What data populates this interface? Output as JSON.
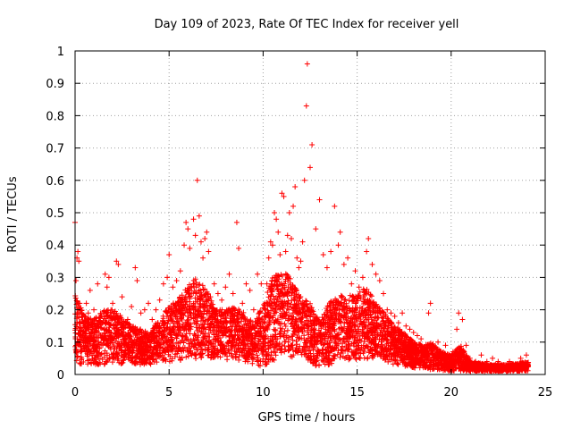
{
  "chart_data": {
    "type": "scatter",
    "title": "Day 109 of 2023, Rate Of TEC Index for receiver yell",
    "xlabel": "GPS time / hours",
    "ylabel": "ROTI / TECUs",
    "xlim": [
      0,
      25
    ],
    "ylim": [
      0,
      1
    ],
    "x_ticks": [
      0,
      5,
      10,
      15,
      20,
      25
    ],
    "x_tick_labels": [
      "0",
      "5",
      "10",
      "15",
      "20",
      "25"
    ],
    "y_ticks": [
      0,
      0.1,
      0.2,
      0.3,
      0.4,
      0.5,
      0.6,
      0.7,
      0.8,
      0.9,
      1
    ],
    "y_tick_labels": [
      "0",
      "0.1",
      "0.2",
      "0.3",
      "0.4",
      "0.5",
      "0.6",
      "0.7",
      "0.8",
      "0.9",
      "1"
    ],
    "grid": true,
    "marker": "plus",
    "marker_color": "#ff0000",
    "points": [
      [
        0.0,
        0.47
      ],
      [
        0.05,
        0.29
      ],
      [
        0.1,
        0.36
      ],
      [
        0.15,
        0.38
      ],
      [
        0.2,
        0.35
      ],
      [
        0.25,
        0.22
      ],
      [
        0.3,
        0.12
      ],
      [
        0.4,
        0.18
      ],
      [
        0.5,
        0.15
      ],
      [
        0.6,
        0.22
      ],
      [
        0.7,
        0.19
      ],
      [
        0.8,
        0.26
      ],
      [
        0.9,
        0.14
      ],
      [
        1.0,
        0.2
      ],
      [
        1.2,
        0.28
      ],
      [
        1.4,
        0.18
      ],
      [
        1.6,
        0.31
      ],
      [
        1.7,
        0.27
      ],
      [
        1.8,
        0.3
      ],
      [
        2.0,
        0.22
      ],
      [
        2.2,
        0.35
      ],
      [
        2.3,
        0.34
      ],
      [
        2.5,
        0.24
      ],
      [
        2.8,
        0.17
      ],
      [
        3.0,
        0.21
      ],
      [
        3.2,
        0.33
      ],
      [
        3.3,
        0.29
      ],
      [
        3.5,
        0.19
      ],
      [
        3.7,
        0.2
      ],
      [
        3.9,
        0.22
      ],
      [
        4.1,
        0.17
      ],
      [
        4.3,
        0.2
      ],
      [
        4.5,
        0.23
      ],
      [
        4.7,
        0.28
      ],
      [
        4.9,
        0.3
      ],
      [
        5.0,
        0.37
      ],
      [
        5.2,
        0.27
      ],
      [
        5.4,
        0.29
      ],
      [
        5.6,
        0.32
      ],
      [
        5.8,
        0.4
      ],
      [
        5.9,
        0.47
      ],
      [
        6.0,
        0.45
      ],
      [
        6.1,
        0.39
      ],
      [
        6.3,
        0.48
      ],
      [
        6.4,
        0.43
      ],
      [
        6.5,
        0.6
      ],
      [
        6.6,
        0.49
      ],
      [
        6.7,
        0.41
      ],
      [
        6.8,
        0.36
      ],
      [
        6.9,
        0.42
      ],
      [
        7.0,
        0.44
      ],
      [
        7.1,
        0.38
      ],
      [
        7.2,
        0.24
      ],
      [
        7.4,
        0.28
      ],
      [
        7.6,
        0.25
      ],
      [
        7.8,
        0.23
      ],
      [
        8.0,
        0.27
      ],
      [
        8.2,
        0.31
      ],
      [
        8.4,
        0.25
      ],
      [
        8.6,
        0.47
      ],
      [
        8.7,
        0.39
      ],
      [
        8.9,
        0.22
      ],
      [
        9.1,
        0.28
      ],
      [
        9.3,
        0.26
      ],
      [
        9.5,
        0.2
      ],
      [
        9.7,
        0.31
      ],
      [
        9.9,
        0.28
      ],
      [
        10.1,
        0.22
      ],
      [
        10.2,
        0.28
      ],
      [
        10.3,
        0.36
      ],
      [
        10.4,
        0.41
      ],
      [
        10.5,
        0.4
      ],
      [
        10.6,
        0.5
      ],
      [
        10.7,
        0.48
      ],
      [
        10.8,
        0.44
      ],
      [
        10.9,
        0.37
      ],
      [
        11.0,
        0.56
      ],
      [
        11.1,
        0.55
      ],
      [
        11.2,
        0.38
      ],
      [
        11.3,
        0.43
      ],
      [
        11.4,
        0.5
      ],
      [
        11.5,
        0.42
      ],
      [
        11.6,
        0.52
      ],
      [
        11.7,
        0.58
      ],
      [
        11.8,
        0.36
      ],
      [
        11.9,
        0.33
      ],
      [
        12.0,
        0.35
      ],
      [
        12.1,
        0.41
      ],
      [
        12.2,
        0.6
      ],
      [
        12.3,
        0.83
      ],
      [
        12.35,
        0.96
      ],
      [
        12.5,
        0.64
      ],
      [
        12.6,
        0.71
      ],
      [
        12.8,
        0.45
      ],
      [
        13.0,
        0.54
      ],
      [
        13.2,
        0.37
      ],
      [
        13.4,
        0.33
      ],
      [
        13.6,
        0.38
      ],
      [
        13.8,
        0.52
      ],
      [
        14.0,
        0.4
      ],
      [
        14.1,
        0.44
      ],
      [
        14.3,
        0.34
      ],
      [
        14.5,
        0.36
      ],
      [
        14.7,
        0.28
      ],
      [
        14.9,
        0.32
      ],
      [
        15.1,
        0.27
      ],
      [
        15.3,
        0.3
      ],
      [
        15.5,
        0.38
      ],
      [
        15.6,
        0.42
      ],
      [
        15.8,
        0.34
      ],
      [
        16.0,
        0.31
      ],
      [
        16.2,
        0.29
      ],
      [
        16.4,
        0.25
      ],
      [
        16.6,
        0.2
      ],
      [
        16.8,
        0.19
      ],
      [
        17.0,
        0.18
      ],
      [
        17.2,
        0.16
      ],
      [
        17.4,
        0.19
      ],
      [
        17.6,
        0.15
      ],
      [
        17.8,
        0.14
      ],
      [
        18.0,
        0.13
      ],
      [
        18.2,
        0.12
      ],
      [
        18.4,
        0.11
      ],
      [
        18.6,
        0.08
      ],
      [
        18.8,
        0.19
      ],
      [
        18.9,
        0.22
      ],
      [
        19.1,
        0.08
      ],
      [
        19.3,
        0.1
      ],
      [
        19.5,
        0.06
      ],
      [
        19.7,
        0.09
      ],
      [
        19.9,
        0.05
      ],
      [
        20.1,
        0.07
      ],
      [
        20.3,
        0.14
      ],
      [
        20.4,
        0.19
      ],
      [
        20.6,
        0.17
      ],
      [
        20.8,
        0.09
      ],
      [
        21.0,
        0.05
      ],
      [
        21.3,
        0.04
      ],
      [
        21.6,
        0.06
      ],
      [
        21.9,
        0.04
      ],
      [
        22.2,
        0.05
      ],
      [
        22.5,
        0.04
      ],
      [
        22.8,
        0.03
      ],
      [
        23.1,
        0.04
      ],
      [
        23.4,
        0.03
      ],
      [
        23.7,
        0.05
      ],
      [
        24.0,
        0.06
      ]
    ],
    "envelope": [
      [
        0,
        0.25
      ],
      [
        0.5,
        0.18
      ],
      [
        1.0,
        0.17
      ],
      [
        1.5,
        0.2
      ],
      [
        2.0,
        0.2
      ],
      [
        2.5,
        0.18
      ],
      [
        3.0,
        0.15
      ],
      [
        3.5,
        0.14
      ],
      [
        4.0,
        0.13
      ],
      [
        4.5,
        0.18
      ],
      [
        5.0,
        0.21
      ],
      [
        5.5,
        0.24
      ],
      [
        6.0,
        0.28
      ],
      [
        6.5,
        0.3
      ],
      [
        7.0,
        0.26
      ],
      [
        7.5,
        0.2
      ],
      [
        8.0,
        0.2
      ],
      [
        8.5,
        0.21
      ],
      [
        9.0,
        0.19
      ],
      [
        9.5,
        0.16
      ],
      [
        10.0,
        0.22
      ],
      [
        10.5,
        0.3
      ],
      [
        11.0,
        0.32
      ],
      [
        11.5,
        0.3
      ],
      [
        12.0,
        0.24
      ],
      [
        12.5,
        0.22
      ],
      [
        13.0,
        0.17
      ],
      [
        13.5,
        0.22
      ],
      [
        14.0,
        0.25
      ],
      [
        14.5,
        0.24
      ],
      [
        15.0,
        0.26
      ],
      [
        15.5,
        0.27
      ],
      [
        16.0,
        0.22
      ],
      [
        16.5,
        0.19
      ],
      [
        17.0,
        0.15
      ],
      [
        17.5,
        0.13
      ],
      [
        18.0,
        0.1
      ],
      [
        18.5,
        0.09
      ],
      [
        19.0,
        0.1
      ],
      [
        19.5,
        0.07
      ],
      [
        20.0,
        0.06
      ],
      [
        20.5,
        0.09
      ],
      [
        21.0,
        0.04
      ],
      [
        22.0,
        0.03
      ],
      [
        23.0,
        0.03
      ],
      [
        24.0,
        0.04
      ]
    ],
    "floor": [
      [
        0,
        0.02
      ],
      [
        0.5,
        0.03
      ],
      [
        2,
        0.03
      ],
      [
        4,
        0.03
      ],
      [
        5,
        0.04
      ],
      [
        7,
        0.05
      ],
      [
        9,
        0.04
      ],
      [
        10,
        0.02
      ],
      [
        11,
        0.06
      ],
      [
        12,
        0.05
      ],
      [
        13,
        0.02
      ],
      [
        14,
        0.04
      ],
      [
        16,
        0.05
      ],
      [
        17,
        0.03
      ],
      [
        18,
        0.02
      ],
      [
        20,
        0.01
      ],
      [
        22,
        0.01
      ],
      [
        24,
        0.01
      ]
    ]
  }
}
